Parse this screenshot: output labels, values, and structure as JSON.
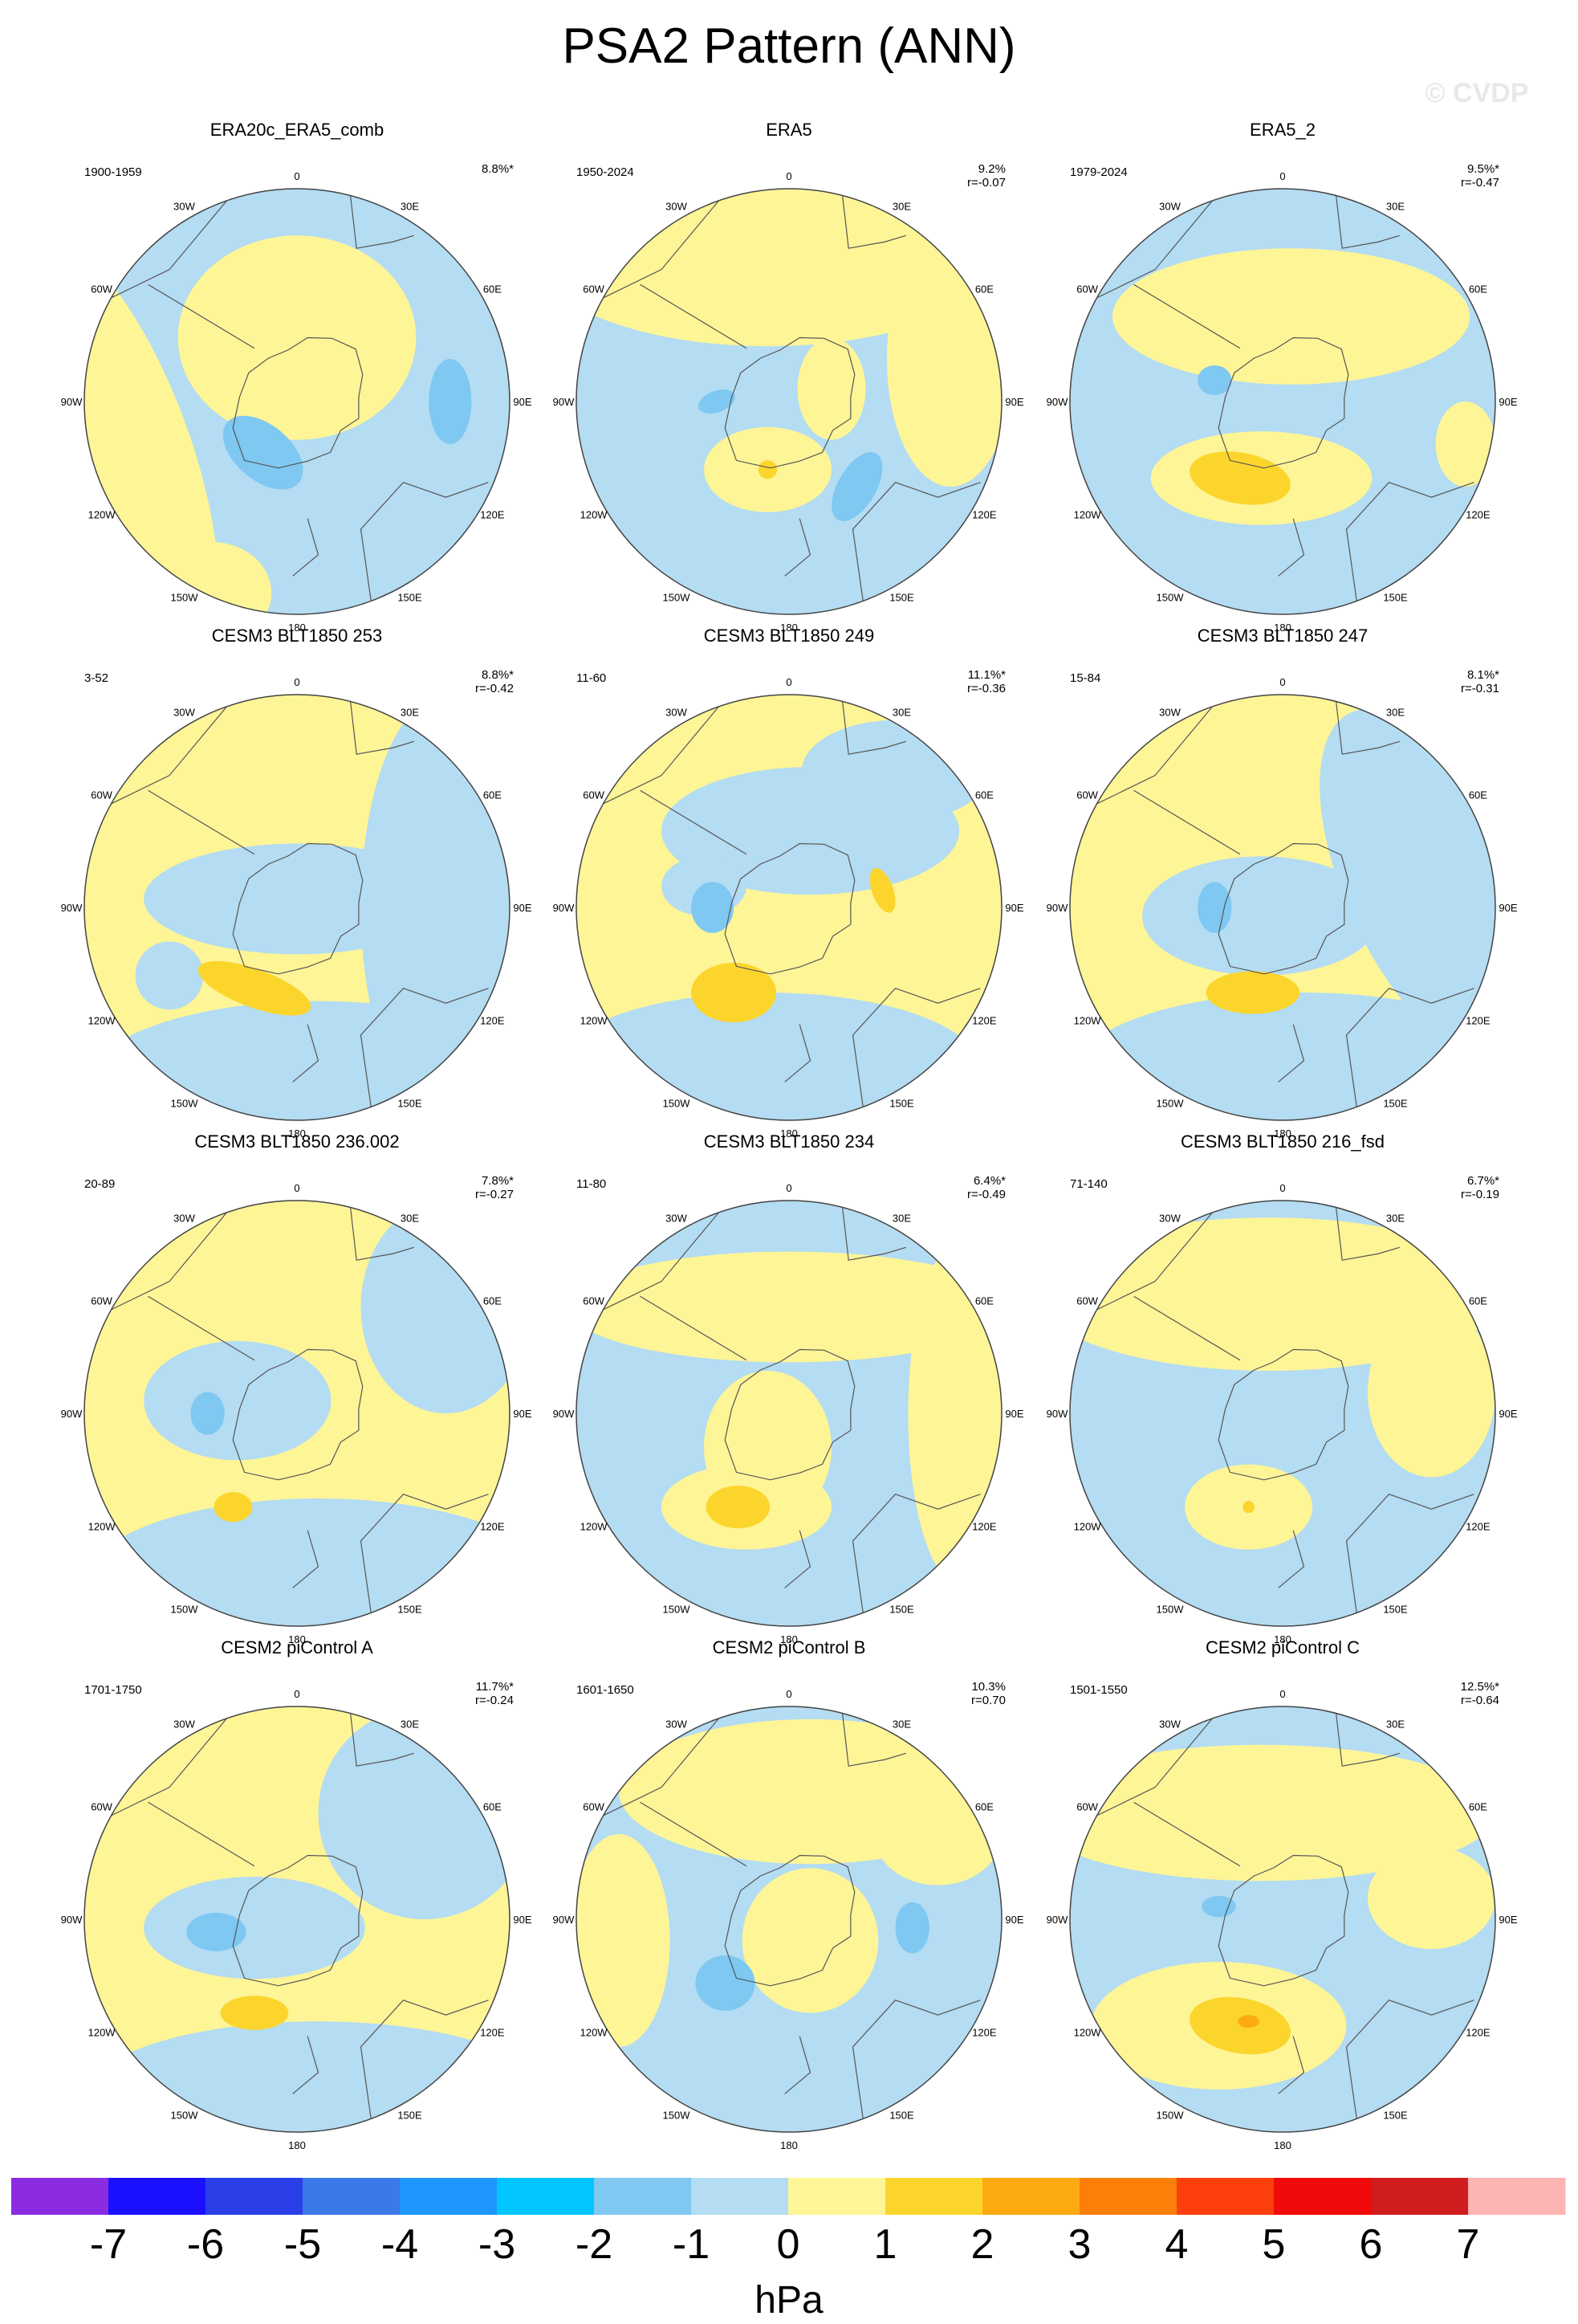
{
  "figure": {
    "title": "PSA2 Pattern (ANN)",
    "watermark": "© CVDP",
    "land_color": "#ffffff",
    "circle_line_color": "#444444"
  },
  "chart_data": {
    "type": "polar contour map grid",
    "longitude_labels": [
      "0",
      "30E",
      "60E",
      "90E",
      "120E",
      "150E",
      "180",
      "150W",
      "120W",
      "90W",
      "60W",
      "30W"
    ],
    "colorbar": {
      "unit": "hPa",
      "tick_labels": [
        "-7",
        "-6",
        "-5",
        "-4",
        "-3",
        "-2",
        "-1",
        "0",
        "1",
        "2",
        "3",
        "4",
        "5",
        "6",
        "7"
      ],
      "colors": [
        "#8a2be2",
        "#1a0fff",
        "#2a3fe8",
        "#3a7ae8",
        "#1e96ff",
        "#00c5ff",
        "#7ec8f2",
        "#b4dcf2",
        "#fef597",
        "#fcd52c",
        "#fcaa10",
        "#fc7f0a",
        "#fc3f0c",
        "#f00a0a",
        "#d01c1c",
        "#ffb4b4"
      ]
    },
    "panels": [
      {
        "title": "ERA20c_ERA5_comb",
        "period": "1900-1959",
        "pct": "8.8%*",
        "r": "",
        "bg": "neg",
        "blobs": [
          {
            "lev": "pos",
            "cx": 0.5,
            "cy": 0.35,
            "rx": 0.28,
            "ry": 0.24,
            "rot": 0
          },
          {
            "lev": "pos",
            "cx": 0.05,
            "cy": 0.62,
            "rx": 0.2,
            "ry": 0.55,
            "rot": -20
          },
          {
            "lev": "pos",
            "cx": 0.3,
            "cy": 0.95,
            "rx": 0.14,
            "ry": 0.12,
            "rot": 0
          },
          {
            "lev": "neg2",
            "cx": 0.42,
            "cy": 0.62,
            "rx": 0.11,
            "ry": 0.065,
            "rot": 40
          },
          {
            "lev": "neg2",
            "cx": 0.86,
            "cy": 0.5,
            "rx": 0.05,
            "ry": 0.1,
            "rot": 0
          }
        ]
      },
      {
        "title": "ERA5",
        "period": "1950-2024",
        "pct": "9.2%",
        "r": "r=-0.07",
        "bg": "neg",
        "blobs": [
          {
            "lev": "pos",
            "cx": 0.45,
            "cy": 0.15,
            "rx": 0.55,
            "ry": 0.22,
            "rot": 0
          },
          {
            "lev": "pos",
            "cx": 0.88,
            "cy": 0.4,
            "rx": 0.15,
            "ry": 0.3,
            "rot": 0
          },
          {
            "lev": "pos",
            "cx": 0.45,
            "cy": 0.66,
            "rx": 0.15,
            "ry": 0.1,
            "rot": 0
          },
          {
            "lev": "pos",
            "cx": 0.6,
            "cy": 0.47,
            "rx": 0.08,
            "ry": 0.12,
            "rot": 0
          },
          {
            "lev": "pos2",
            "cx": 0.45,
            "cy": 0.66,
            "rx": 0.022,
            "ry": 0.022,
            "rot": 0
          },
          {
            "lev": "neg2",
            "cx": 0.33,
            "cy": 0.5,
            "rx": 0.045,
            "ry": 0.025,
            "rot": -20
          },
          {
            "lev": "neg2",
            "cx": 0.66,
            "cy": 0.7,
            "rx": 0.045,
            "ry": 0.09,
            "rot": 30
          }
        ]
      },
      {
        "title": "ERA5_2",
        "period": "1979-2024",
        "pct": "9.5%*",
        "r": "r=-0.47",
        "bg": "neg",
        "blobs": [
          {
            "lev": "pos",
            "cx": 0.52,
            "cy": 0.3,
            "rx": 0.42,
            "ry": 0.16,
            "rot": 0
          },
          {
            "lev": "pos",
            "cx": 0.45,
            "cy": 0.68,
            "rx": 0.26,
            "ry": 0.11,
            "rot": 0
          },
          {
            "lev": "pos",
            "cx": 0.93,
            "cy": 0.6,
            "rx": 0.07,
            "ry": 0.1,
            "rot": 0
          },
          {
            "lev": "pos2",
            "cx": 0.4,
            "cy": 0.68,
            "rx": 0.12,
            "ry": 0.06,
            "rot": 10
          },
          {
            "lev": "neg2",
            "cx": 0.34,
            "cy": 0.45,
            "rx": 0.04,
            "ry": 0.035,
            "rot": 0
          }
        ]
      },
      {
        "title": "CESM3 BLT1850 253",
        "period": "3-52",
        "pct": "8.8%*",
        "r": "r=-0.42",
        "bg": "pos",
        "blobs": [
          {
            "lev": "neg",
            "cx": 0.5,
            "cy": 0.48,
            "rx": 0.36,
            "ry": 0.13,
            "rot": 0
          },
          {
            "lev": "neg",
            "cx": 0.85,
            "cy": 0.5,
            "rx": 0.2,
            "ry": 0.5,
            "rot": 0
          },
          {
            "lev": "neg",
            "cx": 0.55,
            "cy": 0.92,
            "rx": 0.55,
            "ry": 0.2,
            "rot": 0
          },
          {
            "lev": "neg",
            "cx": 0.2,
            "cy": 0.66,
            "rx": 0.08,
            "ry": 0.08,
            "rot": 0
          },
          {
            "lev": "pos2",
            "cx": 0.4,
            "cy": 0.69,
            "rx": 0.14,
            "ry": 0.045,
            "rot": 20
          }
        ]
      },
      {
        "title": "CESM3 BLT1850 249",
        "period": "11-60",
        "pct": "11.1%*",
        "r": "r=-0.36",
        "bg": "pos",
        "blobs": [
          {
            "lev": "neg",
            "cx": 0.45,
            "cy": 0.88,
            "rx": 0.5,
            "ry": 0.18,
            "rot": 0
          },
          {
            "lev": "neg",
            "cx": 0.55,
            "cy": 0.32,
            "rx": 0.35,
            "ry": 0.15,
            "rot": 0
          },
          {
            "lev": "neg",
            "cx": 0.75,
            "cy": 0.18,
            "rx": 0.22,
            "ry": 0.12,
            "rot": 0
          },
          {
            "lev": "neg",
            "cx": 0.3,
            "cy": 0.45,
            "rx": 0.1,
            "ry": 0.07,
            "rot": 0
          },
          {
            "lev": "neg2",
            "cx": 0.32,
            "cy": 0.5,
            "rx": 0.05,
            "ry": 0.06,
            "rot": 0
          },
          {
            "lev": "pos2",
            "cx": 0.37,
            "cy": 0.7,
            "rx": 0.1,
            "ry": 0.07,
            "rot": 0
          },
          {
            "lev": "pos2",
            "cx": 0.72,
            "cy": 0.46,
            "rx": 0.025,
            "ry": 0.055,
            "rot": -20
          }
        ]
      },
      {
        "title": "CESM3 BLT1850 247",
        "period": "15-84",
        "pct": "8.1%*",
        "r": "r=-0.31",
        "bg": "pos",
        "blobs": [
          {
            "lev": "neg",
            "cx": 0.45,
            "cy": 0.52,
            "rx": 0.28,
            "ry": 0.14,
            "rot": 0
          },
          {
            "lev": "neg",
            "cx": 0.85,
            "cy": 0.45,
            "rx": 0.2,
            "ry": 0.45,
            "rot": -25
          },
          {
            "lev": "neg",
            "cx": 0.55,
            "cy": 0.9,
            "rx": 0.55,
            "ry": 0.2,
            "rot": 0
          },
          {
            "lev": "neg2",
            "cx": 0.34,
            "cy": 0.5,
            "rx": 0.04,
            "ry": 0.06,
            "rot": 0
          },
          {
            "lev": "pos2",
            "cx": 0.43,
            "cy": 0.7,
            "rx": 0.11,
            "ry": 0.05,
            "rot": 0
          }
        ]
      },
      {
        "title": "CESM3 BLT1850 236.002",
        "period": "20-89",
        "pct": "7.8%*",
        "r": "r=-0.27",
        "bg": "pos",
        "blobs": [
          {
            "lev": "neg",
            "cx": 0.36,
            "cy": 0.47,
            "rx": 0.22,
            "ry": 0.14,
            "rot": 0
          },
          {
            "lev": "neg",
            "cx": 0.85,
            "cy": 0.25,
            "rx": 0.2,
            "ry": 0.25,
            "rot": 0
          },
          {
            "lev": "neg",
            "cx": 0.55,
            "cy": 0.9,
            "rx": 0.55,
            "ry": 0.2,
            "rot": 0
          },
          {
            "lev": "neg2",
            "cx": 0.29,
            "cy": 0.5,
            "rx": 0.04,
            "ry": 0.05,
            "rot": 0
          },
          {
            "lev": "pos2",
            "cx": 0.35,
            "cy": 0.72,
            "rx": 0.045,
            "ry": 0.035,
            "rot": 0
          }
        ]
      },
      {
        "title": "CESM3 BLT1850 234",
        "period": "11-80",
        "pct": "6.4%*",
        "r": "r=-0.49",
        "bg": "neg",
        "blobs": [
          {
            "lev": "pos",
            "cx": 0.5,
            "cy": 0.25,
            "rx": 0.52,
            "ry": 0.13,
            "rot": 0
          },
          {
            "lev": "pos",
            "cx": 0.9,
            "cy": 0.5,
            "rx": 0.12,
            "ry": 0.4,
            "rot": 0
          },
          {
            "lev": "pos",
            "cx": 0.45,
            "cy": 0.58,
            "rx": 0.15,
            "ry": 0.18,
            "rot": 0
          },
          {
            "lev": "pos",
            "cx": 0.4,
            "cy": 0.72,
            "rx": 0.2,
            "ry": 0.1,
            "rot": 0
          },
          {
            "lev": "pos2",
            "cx": 0.38,
            "cy": 0.72,
            "rx": 0.075,
            "ry": 0.05,
            "rot": 0
          }
        ]
      },
      {
        "title": "CESM3 BLT1850 216_fsd",
        "period": "71-140",
        "pct": "6.7%*",
        "r": "r=-0.19",
        "bg": "neg",
        "blobs": [
          {
            "lev": "pos",
            "cx": 0.47,
            "cy": 0.22,
            "rx": 0.55,
            "ry": 0.18,
            "rot": 0
          },
          {
            "lev": "pos",
            "cx": 0.85,
            "cy": 0.45,
            "rx": 0.15,
            "ry": 0.2,
            "rot": 0
          },
          {
            "lev": "pos",
            "cx": 0.42,
            "cy": 0.72,
            "rx": 0.15,
            "ry": 0.1,
            "rot": 0
          },
          {
            "lev": "pos2",
            "cx": 0.42,
            "cy": 0.72,
            "rx": 0.014,
            "ry": 0.014,
            "rot": 0
          }
        ]
      },
      {
        "title": "CESM2 piControl A",
        "period": "1701-1750",
        "pct": "11.7%*",
        "r": "r=-0.24",
        "bg": "pos",
        "blobs": [
          {
            "lev": "neg",
            "cx": 0.4,
            "cy": 0.52,
            "rx": 0.26,
            "ry": 0.12,
            "rot": 0
          },
          {
            "lev": "neg",
            "cx": 0.8,
            "cy": 0.25,
            "rx": 0.25,
            "ry": 0.25,
            "rot": 0
          },
          {
            "lev": "neg",
            "cx": 0.55,
            "cy": 0.92,
            "rx": 0.55,
            "ry": 0.18,
            "rot": 0
          },
          {
            "lev": "neg2",
            "cx": 0.31,
            "cy": 0.53,
            "rx": 0.07,
            "ry": 0.045,
            "rot": 0
          },
          {
            "lev": "pos2",
            "cx": 0.4,
            "cy": 0.72,
            "rx": 0.08,
            "ry": 0.04,
            "rot": 0
          }
        ]
      },
      {
        "title": "CESM2 piControl B",
        "period": "1601-1650",
        "pct": "10.3%",
        "r": "r=0.70",
        "bg": "neg",
        "blobs": [
          {
            "lev": "pos",
            "cx": 0.55,
            "cy": 0.2,
            "rx": 0.45,
            "ry": 0.17,
            "rot": 0
          },
          {
            "lev": "pos",
            "cx": 0.1,
            "cy": 0.55,
            "rx": 0.12,
            "ry": 0.25,
            "rot": 0
          },
          {
            "lev": "pos",
            "cx": 0.55,
            "cy": 0.55,
            "rx": 0.16,
            "ry": 0.17,
            "rot": 0
          },
          {
            "lev": "pos",
            "cx": 0.85,
            "cy": 0.3,
            "rx": 0.15,
            "ry": 0.12,
            "rot": 0
          },
          {
            "lev": "neg2",
            "cx": 0.35,
            "cy": 0.65,
            "rx": 0.07,
            "ry": 0.065,
            "rot": 0
          },
          {
            "lev": "neg2",
            "cx": 0.79,
            "cy": 0.52,
            "rx": 0.04,
            "ry": 0.06,
            "rot": 0
          }
        ]
      },
      {
        "title": "CESM2 piControl C",
        "period": "1501-1550",
        "pct": "12.5%*",
        "r": "r=-0.64",
        "bg": "neg",
        "blobs": [
          {
            "lev": "pos",
            "cx": 0.45,
            "cy": 0.25,
            "rx": 0.55,
            "ry": 0.16,
            "rot": 0
          },
          {
            "lev": "pos",
            "cx": 0.85,
            "cy": 0.45,
            "rx": 0.15,
            "ry": 0.12,
            "rot": 0
          },
          {
            "lev": "pos",
            "cx": 0.35,
            "cy": 0.75,
            "rx": 0.3,
            "ry": 0.15,
            "rot": 0
          },
          {
            "lev": "pos2",
            "cx": 0.4,
            "cy": 0.75,
            "rx": 0.12,
            "ry": 0.065,
            "rot": 10
          },
          {
            "lev": "pos3",
            "cx": 0.42,
            "cy": 0.74,
            "rx": 0.025,
            "ry": 0.015,
            "rot": 0
          },
          {
            "lev": "neg2",
            "cx": 0.35,
            "cy": 0.47,
            "rx": 0.04,
            "ry": 0.025,
            "rot": 0
          }
        ]
      }
    ]
  }
}
